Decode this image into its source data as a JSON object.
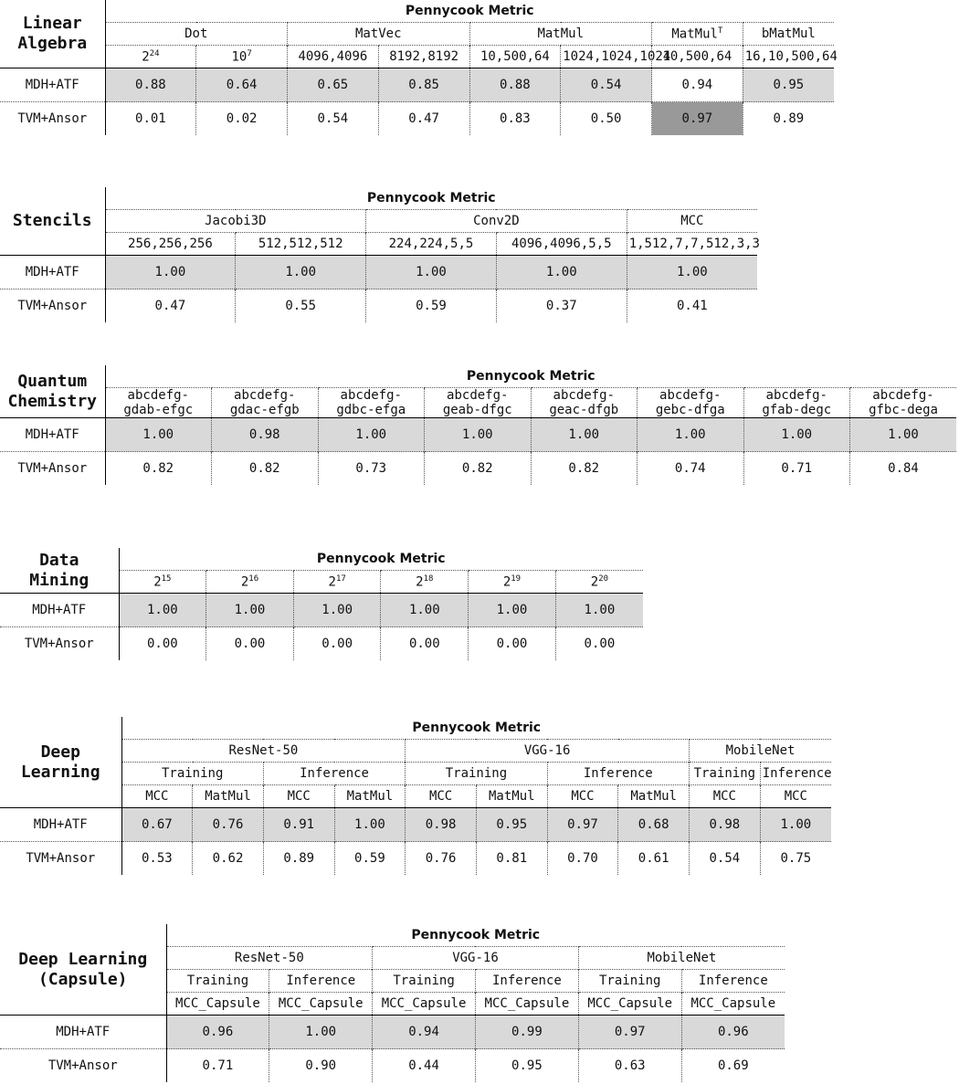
{
  "tables": [
    {
      "title": "Linear\nAlgebra",
      "metric": "Pennycook Metric",
      "header": [
        [
          "Dot",
          "MatVec",
          "MatMul",
          {
            "base": "MatMul",
            "sup": "T"
          },
          "bMatMul"
        ],
        [
          {
            "base": "2",
            "sup": "24"
          },
          {
            "base": "10",
            "sup": "7"
          },
          "4096,4096",
          "8192,8192",
          "10,500,64",
          "1024,1024,1024",
          "10,500,64",
          "16,10,500,64"
        ]
      ],
      "rows": [
        {
          "label": "MDH+ATF",
          "values": [
            "0.88",
            "0.64",
            "0.65",
            "0.85",
            "0.88",
            "0.54",
            "0.94",
            "0.95"
          ]
        },
        {
          "label": "TVM+Ansor",
          "values": [
            "0.01",
            "0.02",
            "0.54",
            "0.47",
            "0.83",
            "0.50",
            "0.97",
            "0.89"
          ]
        }
      ]
    },
    {
      "title": "Stencils",
      "metric": "Pennycook Metric",
      "header": [
        [
          "Jacobi3D",
          "Conv2D",
          "MCC"
        ],
        [
          "256,256,256",
          "512,512,512",
          "224,224,5,5",
          "4096,4096,5,5",
          "1,512,7,7,512,3,3"
        ]
      ],
      "rows": [
        {
          "label": "MDH+ATF",
          "values": [
            "1.00",
            "1.00",
            "1.00",
            "1.00",
            "1.00"
          ]
        },
        {
          "label": "TVM+Ansor",
          "values": [
            "0.47",
            "0.55",
            "0.59",
            "0.37",
            "0.41"
          ]
        }
      ]
    },
    {
      "title": "Quantum\nChemistry",
      "metric": "Pennycook Metric",
      "header": [
        [
          "abcdefg-\ngdab-efgc",
          "abcdefg-\ngdac-efgb",
          "abcdefg-\ngdbc-efga",
          "abcdefg-\ngeab-dfgc",
          "abcdefg-\ngeac-dfgb",
          "abcdefg-\ngebc-dfga",
          "abcdefg-\ngfab-degc",
          "abcdefg-\ngfbc-dega"
        ]
      ],
      "rows": [
        {
          "label": "MDH+ATF",
          "values": [
            "1.00",
            "0.98",
            "1.00",
            "1.00",
            "1.00",
            "1.00",
            "1.00",
            "1.00"
          ]
        },
        {
          "label": "TVM+Ansor",
          "values": [
            "0.82",
            "0.82",
            "0.73",
            "0.82",
            "0.82",
            "0.74",
            "0.71",
            "0.84"
          ]
        }
      ]
    },
    {
      "title": "Data\nMining",
      "metric": "Pennycook Metric",
      "header": [
        [
          {
            "base": "2",
            "sup": "15"
          },
          {
            "base": "2",
            "sup": "16"
          },
          {
            "base": "2",
            "sup": "17"
          },
          {
            "base": "2",
            "sup": "18"
          },
          {
            "base": "2",
            "sup": "19"
          },
          {
            "base": "2",
            "sup": "20"
          }
        ]
      ],
      "rows": [
        {
          "label": "MDH+ATF",
          "values": [
            "1.00",
            "1.00",
            "1.00",
            "1.00",
            "1.00",
            "1.00"
          ]
        },
        {
          "label": "TVM+Ansor",
          "values": [
            "0.00",
            "0.00",
            "0.00",
            "0.00",
            "0.00",
            "0.00"
          ]
        }
      ]
    },
    {
      "title": "Deep\nLearning",
      "metric": "Pennycook Metric",
      "header": [
        [
          "ResNet-50",
          "VGG-16",
          "MobileNet"
        ],
        [
          "Training",
          "Inference",
          "Training",
          "Inference",
          "Training",
          "Inference"
        ],
        [
          "MCC",
          "MatMul",
          "MCC",
          "MatMul",
          "MCC",
          "MatMul",
          "MCC",
          "MatMul",
          "MCC",
          "MCC"
        ]
      ],
      "rows": [
        {
          "label": "MDH+ATF",
          "values": [
            "0.67",
            "0.76",
            "0.91",
            "1.00",
            "0.98",
            "0.95",
            "0.97",
            "0.68",
            "0.98",
            "1.00"
          ]
        },
        {
          "label": "TVM+Ansor",
          "values": [
            "0.53",
            "0.62",
            "0.89",
            "0.59",
            "0.76",
            "0.81",
            "0.70",
            "0.61",
            "0.54",
            "0.75"
          ]
        }
      ]
    },
    {
      "title": "Deep Learning\n(Capsule)",
      "metric": "Pennycook Metric",
      "header": [
        [
          "ResNet-50",
          "VGG-16",
          "MobileNet"
        ],
        [
          "Training",
          "Inference",
          "Training",
          "Inference",
          "Training",
          "Inference"
        ],
        [
          "MCC_Capsule",
          "MCC_Capsule",
          "MCC_Capsule",
          "MCC_Capsule",
          "MCC_Capsule",
          "MCC_Capsule"
        ]
      ],
      "rows": [
        {
          "label": "MDH+ATF",
          "values": [
            "0.96",
            "1.00",
            "0.94",
            "0.99",
            "0.97",
            "0.96"
          ]
        },
        {
          "label": "TVM+Ansor",
          "values": [
            "0.71",
            "0.90",
            "0.44",
            "0.95",
            "0.63",
            "0.69"
          ]
        }
      ]
    }
  ]
}
